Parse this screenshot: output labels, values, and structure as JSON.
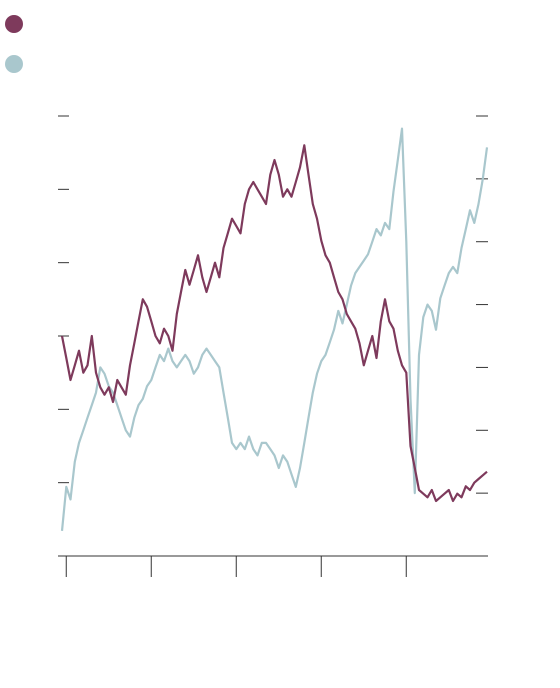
{
  "colors": {
    "series_1": "#7e3a5c",
    "series_2": "#a9c7cd",
    "axis": "#333333",
    "background": "#ffffff"
  },
  "chart_data": {
    "type": "line",
    "title": "",
    "xlabel": "",
    "ylabel_left": "",
    "ylabel_right": "",
    "legend": {
      "placement": "top-left",
      "entries": [
        "",
        ""
      ]
    },
    "grid": false,
    "axes": {
      "x": {
        "range": [
          0,
          100
        ],
        "ticks": [
          1,
          21,
          41,
          61,
          81
        ],
        "tick_labels": []
      },
      "y_left": {
        "range": [
          0,
          6
        ],
        "ticks": [
          1,
          2,
          3,
          4,
          5,
          6
        ],
        "tick_labels": []
      },
      "y_right": {
        "range": [
          0,
          7
        ],
        "ticks": [
          1,
          2,
          3,
          4,
          5,
          6,
          7
        ],
        "tick_labels": []
      }
    },
    "series": [
      {
        "axis": "left",
        "x": [
          0,
          1,
          2,
          3,
          4,
          5,
          6,
          7,
          8,
          9,
          10,
          11,
          12,
          13,
          14,
          15,
          16,
          17,
          18,
          19,
          20,
          21,
          22,
          23,
          24,
          25,
          26,
          27,
          28,
          29,
          30,
          31,
          32,
          33,
          34,
          35,
          36,
          37,
          38,
          39,
          40,
          41,
          42,
          43,
          44,
          45,
          46,
          47,
          48,
          49,
          50,
          51,
          52,
          53,
          54,
          55,
          56,
          57,
          58,
          59,
          60,
          61,
          62,
          63,
          64,
          65,
          66,
          67,
          68,
          69,
          70,
          71,
          72,
          73,
          74,
          75,
          76,
          77,
          78,
          79,
          80,
          81,
          82,
          83,
          84,
          85,
          86,
          87,
          88,
          89,
          90,
          91,
          92,
          93,
          94,
          95,
          96,
          97,
          98,
          99,
          100
        ],
        "y": [
          3.0,
          2.7,
          2.4,
          2.6,
          2.8,
          2.5,
          2.6,
          3.0,
          2.5,
          2.3,
          2.2,
          2.3,
          2.1,
          2.4,
          2.3,
          2.2,
          2.6,
          2.9,
          3.2,
          3.5,
          3.4,
          3.2,
          3.0,
          2.9,
          3.1,
          3.0,
          2.8,
          3.3,
          3.6,
          3.9,
          3.7,
          3.9,
          4.1,
          3.8,
          3.6,
          3.8,
          4.0,
          3.8,
          4.2,
          4.4,
          4.6,
          4.5,
          4.4,
          4.8,
          5.0,
          5.1,
          5.0,
          4.9,
          4.8,
          5.2,
          5.4,
          5.2,
          4.9,
          5.0,
          4.9,
          5.1,
          5.3,
          5.6,
          5.2,
          4.8,
          4.6,
          4.3,
          4.1,
          4.0,
          3.8,
          3.6,
          3.5,
          3.3,
          3.2,
          3.1,
          2.9,
          2.6,
          2.8,
          3.0,
          2.7,
          3.2,
          3.5,
          3.2,
          3.1,
          2.8,
          2.6,
          2.5,
          1.5,
          1.2,
          0.9,
          0.85,
          0.8,
          0.9,
          0.75,
          0.8,
          0.85,
          0.9,
          0.75,
          0.85,
          0.8,
          0.95,
          0.9,
          1.0,
          1.05,
          1.1,
          1.15
        ]
      },
      {
        "axis": "right",
        "x": [
          0,
          1,
          2,
          3,
          4,
          5,
          6,
          7,
          8,
          9,
          10,
          11,
          12,
          13,
          14,
          15,
          16,
          17,
          18,
          19,
          20,
          21,
          22,
          23,
          24,
          25,
          26,
          27,
          28,
          29,
          30,
          31,
          32,
          33,
          34,
          35,
          36,
          37,
          38,
          39,
          40,
          41,
          42,
          43,
          44,
          45,
          46,
          47,
          48,
          49,
          50,
          51,
          52,
          53,
          54,
          55,
          56,
          57,
          58,
          59,
          60,
          61,
          62,
          63,
          64,
          65,
          66,
          67,
          68,
          69,
          70,
          71,
          72,
          73,
          74,
          75,
          76,
          77,
          78,
          79,
          80,
          81,
          82,
          83,
          84,
          85,
          86,
          87,
          88,
          89,
          90,
          91,
          92,
          93,
          94,
          95,
          96,
          97,
          98,
          99,
          100
        ],
        "y": [
          0.4,
          1.1,
          0.9,
          1.5,
          1.8,
          2.0,
          2.2,
          2.4,
          2.6,
          3.0,
          2.9,
          2.7,
          2.6,
          2.4,
          2.2,
          2.0,
          1.9,
          2.2,
          2.4,
          2.5,
          2.7,
          2.8,
          3.0,
          3.2,
          3.1,
          3.3,
          3.1,
          3.0,
          3.1,
          3.2,
          3.1,
          2.9,
          3.0,
          3.2,
          3.3,
          3.2,
          3.1,
          3.0,
          2.6,
          2.2,
          1.8,
          1.7,
          1.8,
          1.7,
          1.9,
          1.7,
          1.6,
          1.8,
          1.8,
          1.7,
          1.6,
          1.4,
          1.6,
          1.5,
          1.3,
          1.1,
          1.4,
          1.8,
          2.2,
          2.6,
          2.9,
          3.1,
          3.2,
          3.4,
          3.6,
          3.9,
          3.7,
          4.0,
          4.3,
          4.5,
          4.6,
          4.7,
          4.8,
          5.0,
          5.2,
          5.1,
          5.3,
          5.2,
          5.8,
          6.3,
          6.8,
          5.0,
          2.5,
          1.0,
          3.2,
          3.8,
          4.0,
          3.9,
          3.6,
          4.1,
          4.3,
          4.5,
          4.6,
          4.5,
          4.9,
          5.2,
          5.5,
          5.3,
          5.6,
          6.0,
          6.5
        ]
      }
    ]
  }
}
